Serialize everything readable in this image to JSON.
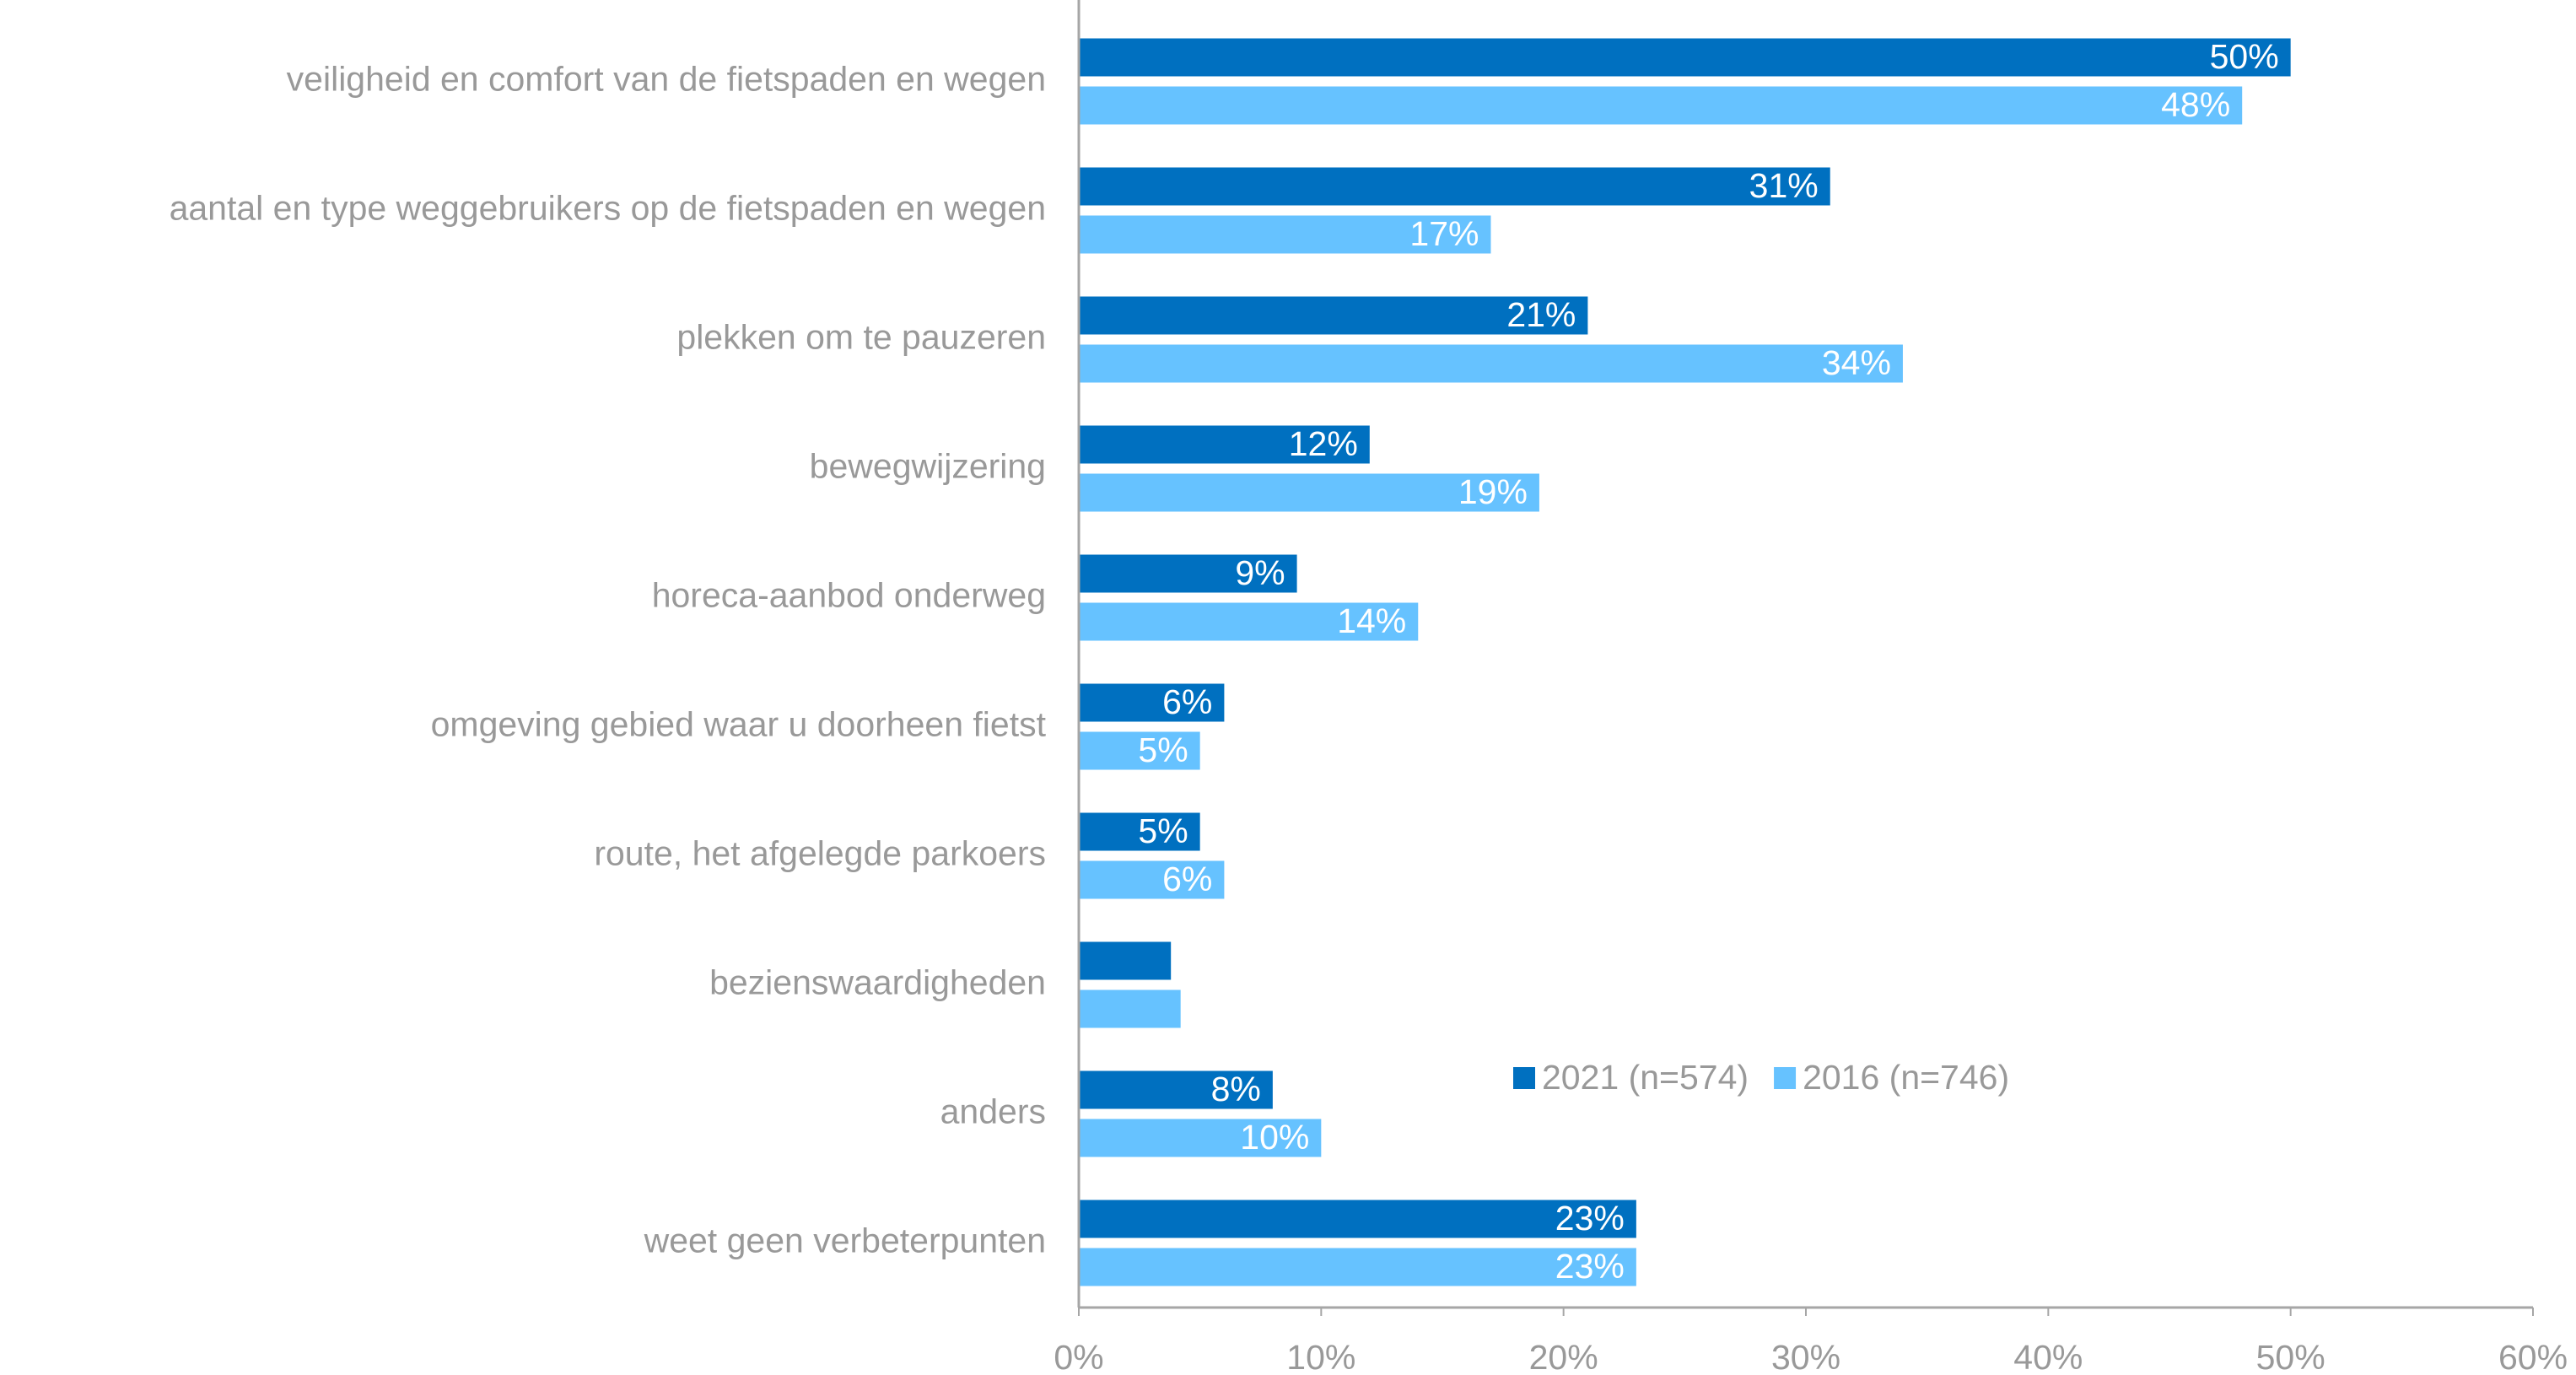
{
  "chart_data": {
    "type": "barh",
    "categories": [
      "veiligheid en comfort van de fietspaden en wegen",
      "aantal en type weggebruikers op de fietspaden en wegen",
      "plekken om te pauzeren",
      "bewegwijzering",
      "horeca-aanbod onderweg",
      "omgeving gebied waar u doorheen fietst",
      "route, het afgelegde parkoers",
      "bezienswaardigheden",
      "anders",
      "weet geen verbeterpunten"
    ],
    "series": [
      {
        "name": "2021 (n=574)",
        "color": "#0070c0",
        "values": [
          50,
          31,
          21,
          12,
          9,
          6,
          5,
          3.8,
          8,
          23
        ],
        "value_labels": [
          "50%",
          "31%",
          "21%",
          "12%",
          "9%",
          "6%",
          "5%",
          null,
          "8%",
          "23%"
        ]
      },
      {
        "name": "2016 (n=746)",
        "color": "#66c2ff",
        "values": [
          48,
          17,
          34,
          19,
          14,
          5,
          6,
          4.2,
          10,
          23
        ],
        "value_labels": [
          "48%",
          "17%",
          "34%",
          "19%",
          "14%",
          "5%",
          "6%",
          null,
          "10%",
          "23%"
        ]
      }
    ],
    "xlim": [
      0,
      60
    ],
    "xticks": [
      {
        "value": 0,
        "label": "0%"
      },
      {
        "value": 10,
        "label": "10%"
      },
      {
        "value": 20,
        "label": "20%"
      },
      {
        "value": 30,
        "label": "30%"
      },
      {
        "value": 40,
        "label": "40%"
      },
      {
        "value": 50,
        "label": "50%"
      },
      {
        "value": 60,
        "label": "60%"
      }
    ]
  }
}
